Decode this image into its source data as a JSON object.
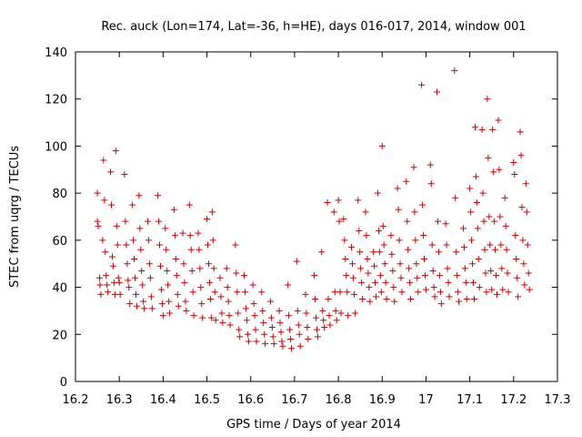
{
  "chart_data": {
    "type": "scatter",
    "title": "Rec. auck (Lon=174, Lat=-36, h=HE), days 016-017, 2014, window 001",
    "xlabel": "GPS time / Days of year 2014",
    "ylabel": "STEC from uqrg / TECUs",
    "xlim": [
      16.2,
      17.3
    ],
    "ylim": [
      0,
      140
    ],
    "xticks": [
      16.2,
      16.3,
      16.4,
      16.5,
      16.6,
      16.7,
      16.8,
      16.9,
      17,
      17.1,
      17.2,
      17.3
    ],
    "xtick_labels": [
      "16.2",
      "16.3",
      "16.4",
      "16.5",
      "16.6",
      "16.7",
      "16.8",
      "16.9",
      "17",
      "17.1",
      "17.2",
      "17.3"
    ],
    "yticks": [
      0,
      20,
      40,
      60,
      80,
      100,
      120,
      140
    ],
    "ytick_labels": [
      "0",
      "20",
      "40",
      "60",
      "80",
      "100",
      "120",
      "140"
    ],
    "grid": false,
    "legend": "none",
    "marker": "plus",
    "color": "#cc0000",
    "points": [
      [
        16.25,
        80
      ],
      [
        16.25,
        68
      ],
      [
        16.252,
        66
      ],
      [
        16.255,
        44
      ],
      [
        16.256,
        41
      ],
      [
        16.258,
        37
      ],
      [
        16.262,
        60
      ],
      [
        16.264,
        94
      ],
      [
        16.266,
        77
      ],
      [
        16.268,
        55
      ],
      [
        16.27,
        45
      ],
      [
        16.272,
        41
      ],
      [
        16.274,
        38
      ],
      [
        16.28,
        89
      ],
      [
        16.282,
        75
      ],
      [
        16.284,
        53
      ],
      [
        16.286,
        49
      ],
      [
        16.288,
        42
      ],
      [
        16.29,
        37
      ],
      [
        16.292,
        98
      ],
      [
        16.294,
        66
      ],
      [
        16.296,
        58
      ],
      [
        16.298,
        44
      ],
      [
        16.3,
        42
      ],
      [
        16.302,
        37
      ],
      [
        16.312,
        88
      ],
      [
        16.314,
        68
      ],
      [
        16.316,
        58
      ],
      [
        16.318,
        50
      ],
      [
        16.32,
        43
      ],
      [
        16.322,
        40
      ],
      [
        16.324,
        33
      ],
      [
        16.33,
        75
      ],
      [
        16.332,
        60
      ],
      [
        16.334,
        52
      ],
      [
        16.336,
        44
      ],
      [
        16.338,
        37
      ],
      [
        16.34,
        32
      ],
      [
        16.345,
        79
      ],
      [
        16.347,
        65
      ],
      [
        16.349,
        56
      ],
      [
        16.351,
        47
      ],
      [
        16.353,
        41
      ],
      [
        16.355,
        34
      ],
      [
        16.357,
        31
      ],
      [
        16.365,
        68
      ],
      [
        16.367,
        60
      ],
      [
        16.369,
        50
      ],
      [
        16.371,
        44
      ],
      [
        16.373,
        36
      ],
      [
        16.375,
        31
      ],
      [
        16.388,
        79
      ],
      [
        16.39,
        68
      ],
      [
        16.392,
        58
      ],
      [
        16.394,
        49
      ],
      [
        16.396,
        39
      ],
      [
        16.398,
        33
      ],
      [
        16.4,
        28
      ],
      [
        16.405,
        65
      ],
      [
        16.407,
        56
      ],
      [
        16.409,
        47
      ],
      [
        16.411,
        41
      ],
      [
        16.413,
        34
      ],
      [
        16.415,
        29
      ],
      [
        16.425,
        73
      ],
      [
        16.427,
        62
      ],
      [
        16.429,
        52
      ],
      [
        16.431,
        45
      ],
      [
        16.433,
        37
      ],
      [
        16.435,
        32
      ],
      [
        16.445,
        63
      ],
      [
        16.447,
        50
      ],
      [
        16.449,
        42
      ],
      [
        16.451,
        34
      ],
      [
        16.453,
        30
      ],
      [
        16.46,
        75
      ],
      [
        16.462,
        62
      ],
      [
        16.464,
        56
      ],
      [
        16.466,
        47
      ],
      [
        16.468,
        38
      ],
      [
        16.47,
        28
      ],
      [
        16.48,
        63
      ],
      [
        16.482,
        56
      ],
      [
        16.484,
        48
      ],
      [
        16.486,
        40
      ],
      [
        16.488,
        33
      ],
      [
        16.49,
        27
      ],
      [
        16.5,
        69
      ],
      [
        16.502,
        58
      ],
      [
        16.504,
        50
      ],
      [
        16.506,
        42
      ],
      [
        16.508,
        35
      ],
      [
        16.51,
        27
      ],
      [
        16.512,
        72
      ],
      [
        16.514,
        60
      ],
      [
        16.516,
        48
      ],
      [
        16.518,
        38
      ],
      [
        16.52,
        26
      ],
      [
        16.53,
        44
      ],
      [
        16.532,
        36
      ],
      [
        16.534,
        29
      ],
      [
        16.536,
        25
      ],
      [
        16.545,
        48
      ],
      [
        16.547,
        40
      ],
      [
        16.549,
        34
      ],
      [
        16.551,
        28
      ],
      [
        16.553,
        24
      ],
      [
        16.565,
        58
      ],
      [
        16.567,
        46
      ],
      [
        16.569,
        38
      ],
      [
        16.571,
        29
      ],
      [
        16.573,
        22
      ],
      [
        16.575,
        19
      ],
      [
        16.585,
        45
      ],
      [
        16.587,
        38
      ],
      [
        16.589,
        31
      ],
      [
        16.591,
        26
      ],
      [
        16.593,
        20
      ],
      [
        16.595,
        17
      ],
      [
        16.605,
        41
      ],
      [
        16.607,
        33
      ],
      [
        16.609,
        28
      ],
      [
        16.611,
        22
      ],
      [
        16.613,
        17
      ],
      [
        16.625,
        38
      ],
      [
        16.627,
        30
      ],
      [
        16.629,
        25
      ],
      [
        16.631,
        20
      ],
      [
        16.633,
        16
      ],
      [
        16.645,
        34
      ],
      [
        16.647,
        27
      ],
      [
        16.649,
        23
      ],
      [
        16.651,
        19
      ],
      [
        16.653,
        16
      ],
      [
        16.665,
        30
      ],
      [
        16.667,
        25
      ],
      [
        16.669,
        21
      ],
      [
        16.671,
        17
      ],
      [
        16.673,
        15
      ],
      [
        16.685,
        41
      ],
      [
        16.687,
        28
      ],
      [
        16.689,
        22
      ],
      [
        16.691,
        18
      ],
      [
        16.693,
        14
      ],
      [
        16.705,
        51
      ],
      [
        16.707,
        30
      ],
      [
        16.709,
        24
      ],
      [
        16.711,
        20
      ],
      [
        16.713,
        15
      ],
      [
        16.725,
        37
      ],
      [
        16.727,
        29
      ],
      [
        16.729,
        23
      ],
      [
        16.731,
        18
      ],
      [
        16.745,
        45
      ],
      [
        16.747,
        35
      ],
      [
        16.749,
        27
      ],
      [
        16.751,
        22
      ],
      [
        16.753,
        19
      ],
      [
        16.762,
        55
      ],
      [
        16.764,
        30
      ],
      [
        16.766,
        26
      ],
      [
        16.768,
        23
      ],
      [
        16.775,
        76
      ],
      [
        16.777,
        35
      ],
      [
        16.779,
        28
      ],
      [
        16.781,
        24
      ],
      [
        16.79,
        72
      ],
      [
        16.792,
        38
      ],
      [
        16.794,
        30
      ],
      [
        16.796,
        26
      ],
      [
        16.8,
        77
      ],
      [
        16.802,
        68
      ],
      [
        16.804,
        38
      ],
      [
        16.806,
        29
      ],
      [
        16.812,
        69
      ],
      [
        16.814,
        60
      ],
      [
        16.816,
        52
      ],
      [
        16.818,
        45
      ],
      [
        16.82,
        38
      ],
      [
        16.822,
        28
      ],
      [
        16.83,
        57
      ],
      [
        16.832,
        50
      ],
      [
        16.834,
        44
      ],
      [
        16.836,
        37
      ],
      [
        16.838,
        29
      ],
      [
        16.845,
        77
      ],
      [
        16.847,
        64
      ],
      [
        16.849,
        55
      ],
      [
        16.851,
        48
      ],
      [
        16.853,
        42
      ],
      [
        16.855,
        35
      ],
      [
        16.862,
        72
      ],
      [
        16.864,
        62
      ],
      [
        16.866,
        52
      ],
      [
        16.868,
        46
      ],
      [
        16.87,
        40
      ],
      [
        16.872,
        34
      ],
      [
        16.88,
        55
      ],
      [
        16.882,
        49
      ],
      [
        16.884,
        42
      ],
      [
        16.886,
        36
      ],
      [
        16.89,
        80
      ],
      [
        16.892,
        64
      ],
      [
        16.894,
        55
      ],
      [
        16.896,
        45
      ],
      [
        16.898,
        38
      ],
      [
        16.9,
        100
      ],
      [
        16.902,
        66
      ],
      [
        16.904,
        58
      ],
      [
        16.906,
        50
      ],
      [
        16.908,
        42
      ],
      [
        16.91,
        35
      ],
      [
        16.92,
        62
      ],
      [
        16.922,
        54
      ],
      [
        16.924,
        47
      ],
      [
        16.926,
        40
      ],
      [
        16.928,
        34
      ],
      [
        16.935,
        82
      ],
      [
        16.937,
        73
      ],
      [
        16.939,
        60
      ],
      [
        16.941,
        50
      ],
      [
        16.943,
        44
      ],
      [
        16.945,
        38
      ],
      [
        16.955,
        85
      ],
      [
        16.957,
        68
      ],
      [
        16.959,
        56
      ],
      [
        16.961,
        48
      ],
      [
        16.963,
        42
      ],
      [
        16.965,
        35
      ],
      [
        16.972,
        91
      ],
      [
        16.974,
        72
      ],
      [
        16.976,
        60
      ],
      [
        16.978,
        50
      ],
      [
        16.98,
        44
      ],
      [
        16.982,
        38
      ],
      [
        16.99,
        126
      ],
      [
        16.992,
        75
      ],
      [
        16.994,
        62
      ],
      [
        16.996,
        52
      ],
      [
        16.998,
        45
      ],
      [
        17.0,
        39
      ],
      [
        17.01,
        92
      ],
      [
        17.012,
        84
      ],
      [
        17.014,
        58
      ],
      [
        17.016,
        47
      ],
      [
        17.018,
        40
      ],
      [
        17.02,
        36
      ],
      [
        17.025,
        123
      ],
      [
        17.027,
        68
      ],
      [
        17.029,
        55
      ],
      [
        17.031,
        45
      ],
      [
        17.033,
        38
      ],
      [
        17.035,
        33
      ],
      [
        17.045,
        67
      ],
      [
        17.047,
        58
      ],
      [
        17.049,
        48
      ],
      [
        17.051,
        42
      ],
      [
        17.053,
        36
      ],
      [
        17.065,
        132
      ],
      [
        17.067,
        78
      ],
      [
        17.069,
        55
      ],
      [
        17.071,
        45
      ],
      [
        17.073,
        38
      ],
      [
        17.075,
        34
      ],
      [
        17.085,
        65
      ],
      [
        17.087,
        57
      ],
      [
        17.089,
        48
      ],
      [
        17.091,
        42
      ],
      [
        17.093,
        35
      ],
      [
        17.1,
        82
      ],
      [
        17.102,
        72
      ],
      [
        17.104,
        60
      ],
      [
        17.106,
        50
      ],
      [
        17.108,
        42
      ],
      [
        17.11,
        35
      ],
      [
        17.112,
        108
      ],
      [
        17.114,
        87
      ],
      [
        17.116,
        76
      ],
      [
        17.118,
        65
      ],
      [
        17.12,
        52
      ],
      [
        17.122,
        40
      ],
      [
        17.128,
        107
      ],
      [
        17.13,
        80
      ],
      [
        17.132,
        68
      ],
      [
        17.134,
        56
      ],
      [
        17.136,
        46
      ],
      [
        17.138,
        38
      ],
      [
        17.14,
        120
      ],
      [
        17.142,
        95
      ],
      [
        17.144,
        70
      ],
      [
        17.146,
        58
      ],
      [
        17.148,
        47
      ],
      [
        17.15,
        39
      ],
      [
        17.152,
        107
      ],
      [
        17.154,
        89
      ],
      [
        17.156,
        68
      ],
      [
        17.158,
        56
      ],
      [
        17.16,
        45
      ],
      [
        17.162,
        37
      ],
      [
        17.165,
        111
      ],
      [
        17.167,
        90
      ],
      [
        17.169,
        70
      ],
      [
        17.171,
        58
      ],
      [
        17.173,
        48
      ],
      [
        17.175,
        39
      ],
      [
        17.18,
        78
      ],
      [
        17.182,
        66
      ],
      [
        17.184,
        56
      ],
      [
        17.186,
        46
      ],
      [
        17.188,
        38
      ],
      [
        17.2,
        93
      ],
      [
        17.202,
        88
      ],
      [
        17.204,
        62
      ],
      [
        17.206,
        52
      ],
      [
        17.208,
        44
      ],
      [
        17.21,
        36
      ],
      [
        17.215,
        106
      ],
      [
        17.217,
        96
      ],
      [
        17.219,
        74
      ],
      [
        17.221,
        60
      ],
      [
        17.223,
        50
      ],
      [
        17.225,
        41
      ],
      [
        17.228,
        84
      ],
      [
        17.23,
        72
      ],
      [
        17.232,
        58
      ],
      [
        17.234,
        46
      ],
      [
        17.236,
        39
      ]
    ]
  }
}
